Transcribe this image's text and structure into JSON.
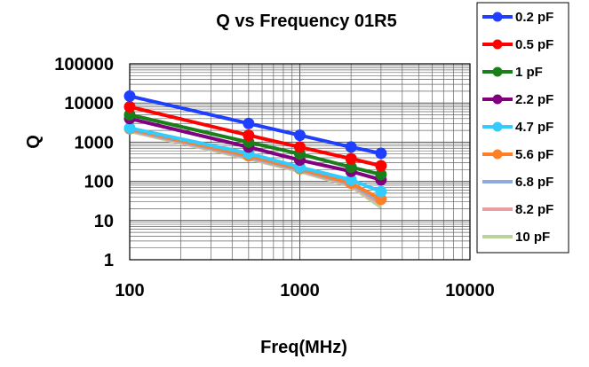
{
  "chart_data": {
    "type": "line",
    "title": "Q vs Frequency 01R5",
    "xlabel": "Freq(MHz)",
    "ylabel": "Q",
    "xscale": "log",
    "yscale": "log",
    "xlim": [
      100,
      10000
    ],
    "ylim": [
      1,
      100000
    ],
    "x_ticks": [
      "100",
      "1000",
      "10000"
    ],
    "y_ticks": [
      "100000",
      "10000",
      "1000",
      "100",
      "10",
      "1"
    ],
    "grid": true,
    "legend_position": "right",
    "x": [
      100,
      500,
      1000,
      2000,
      3000
    ],
    "series": [
      {
        "name": "0.2 pF",
        "color": "#1f3fff",
        "marker": "circle",
        "values": [
          15000,
          3000,
          1500,
          750,
          520
        ]
      },
      {
        "name": "0.5 pF",
        "color": "#ff0000",
        "marker": "circle",
        "values": [
          8000,
          1500,
          750,
          380,
          250
        ]
      },
      {
        "name": "1 pF",
        "color": "#1a7f1a",
        "marker": "circle",
        "values": [
          5000,
          1000,
          500,
          230,
          150
        ]
      },
      {
        "name": "2.2 pF",
        "color": "#800080",
        "marker": "circle",
        "values": [
          4000,
          750,
          350,
          180,
          110
        ]
      },
      {
        "name": "4.7 pF",
        "color": "#33ccff",
        "marker": "circle",
        "values": [
          2300,
          520,
          230,
          110,
          55
        ]
      },
      {
        "name": "5.6 pF",
        "color": "#ff7f27",
        "marker": "circle",
        "values": [
          2200,
          450,
          210,
          90,
          35
        ]
      },
      {
        "name": "6.8 pF",
        "color": "#8faadc",
        "marker": "line",
        "values": [
          2100,
          420,
          200,
          85,
          30
        ]
      },
      {
        "name": "8.2 pF",
        "color": "#e6a0a0",
        "marker": "line",
        "values": [
          2000,
          400,
          190,
          80,
          26
        ]
      },
      {
        "name": "10 pF",
        "color": "#b9d39a",
        "marker": "line",
        "values": [
          1900,
          380,
          180,
          75,
          22
        ]
      }
    ]
  }
}
